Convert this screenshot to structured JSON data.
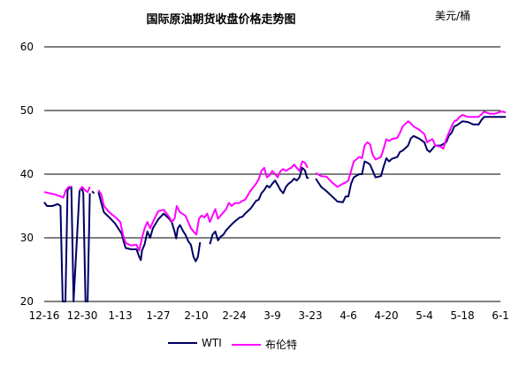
{
  "chart_data": {
    "type": "line",
    "title": "国际原油期货收盘价格走势图",
    "unit_label": "美元/桶",
    "xlabel": "",
    "ylabel": "",
    "ylim": [
      20,
      60
    ],
    "y_ticks": [
      "20",
      "30",
      "40",
      "50",
      "60"
    ],
    "x_ticks": [
      "12-16",
      "12-30",
      "1-13",
      "1-27",
      "2-10",
      "2-24",
      "3-9",
      "3-23",
      "4-6",
      "4-20",
      "5-4",
      "5-18",
      "6-1"
    ],
    "grid": "horizontal",
    "legend_position": "bottom",
    "series": [
      {
        "name": "WTI",
        "color": "#000066",
        "points": [
          [
            0,
            35.6
          ],
          [
            0.5,
            35.0
          ],
          [
            1.5,
            35.0
          ],
          [
            2.5,
            35.3
          ],
          [
            3,
            35.0
          ],
          [
            3.4,
            20.0
          ],
          [
            3.9,
            20.0
          ],
          [
            4.3,
            37.5
          ],
          [
            4.7,
            37.9
          ],
          [
            5.0,
            38.0
          ],
          [
            5.4,
            20.0
          ],
          [
            6.5,
            37.3
          ],
          [
            6.9,
            37.9
          ],
          [
            7.2,
            37.0
          ],
          [
            7.6,
            20.0
          ],
          [
            8.0,
            20.0
          ],
          [
            8.4,
            37.0
          ],
          null,
          [
            8.8,
            37.3
          ],
          [
            9.2,
            37.0
          ],
          null,
          [
            10,
            37.2
          ],
          [
            10.5,
            35.5
          ],
          [
            11,
            34.0
          ],
          [
            12,
            33.2
          ],
          [
            13,
            32.3
          ],
          [
            14,
            31.0
          ],
          [
            14.3,
            30.6
          ],
          [
            14.6,
            29.5
          ],
          [
            15,
            28.4
          ],
          [
            16,
            28.2
          ],
          [
            17,
            28.2
          ],
          [
            17.5,
            27.0
          ],
          [
            17.8,
            26.5
          ],
          [
            18,
            28.0
          ],
          [
            18.5,
            29.0
          ],
          [
            19,
            31.0
          ],
          [
            19.5,
            30.0
          ],
          [
            20,
            31.5
          ],
          [
            21,
            32.9
          ],
          [
            22,
            33.8
          ],
          [
            23,
            33.0
          ],
          [
            23.5,
            32.4
          ],
          [
            24,
            31.0
          ],
          [
            24.3,
            29.9
          ],
          [
            24.6,
            31.5
          ],
          [
            25,
            32.0
          ],
          [
            25.6,
            31.0
          ],
          [
            26,
            30.5
          ],
          [
            26.5,
            29.5
          ],
          [
            27,
            28.9
          ],
          [
            27.5,
            27.0
          ],
          [
            27.9,
            26.3
          ],
          [
            28.3,
            27.0
          ],
          [
            28.7,
            29.3
          ],
          null,
          [
            30.5,
            29.0
          ],
          [
            31,
            30.5
          ],
          [
            31.5,
            31.0
          ],
          [
            32,
            29.6
          ],
          [
            32.5,
            30.2
          ],
          [
            33,
            30.5
          ],
          [
            33.5,
            31.2
          ],
          [
            34.5,
            32.1
          ],
          [
            35,
            32.5
          ],
          [
            36,
            33.2
          ],
          [
            36.5,
            33.3
          ],
          [
            37,
            33.8
          ],
          [
            38,
            34.6
          ],
          [
            39,
            35.8
          ],
          [
            39.5,
            36.0
          ],
          [
            40,
            37.0
          ],
          [
            40.5,
            37.5
          ],
          [
            41,
            38.2
          ],
          [
            41.5,
            37.9
          ],
          [
            42,
            38.5
          ],
          [
            42.5,
            39.0
          ],
          [
            43,
            38.3
          ],
          [
            43.5,
            37.5
          ],
          [
            44,
            37.0
          ],
          [
            44.5,
            38.0
          ],
          [
            45,
            38.5
          ],
          [
            45.5,
            38.8
          ],
          [
            46,
            39.3
          ],
          [
            46.5,
            39.0
          ],
          [
            47,
            39.5
          ],
          [
            47.5,
            41.0
          ],
          [
            48,
            40.6
          ],
          [
            48.4,
            39.4
          ],
          [
            48.7,
            39.4
          ],
          null,
          [
            50,
            39.3
          ],
          [
            51,
            38.0
          ],
          [
            52,
            37.3
          ],
          [
            53,
            36.5
          ],
          [
            54,
            35.7
          ],
          [
            55,
            35.6
          ],
          [
            55.5,
            36.5
          ],
          [
            56,
            36.5
          ],
          [
            56.5,
            38.5
          ],
          [
            57,
            39.5
          ],
          [
            58,
            40.0
          ],
          [
            58.5,
            40.0
          ],
          [
            59,
            42.0
          ],
          [
            59.5,
            41.8
          ],
          [
            60,
            41.5
          ],
          [
            60.5,
            40.5
          ],
          [
            61,
            39.5
          ],
          [
            62,
            39.7
          ],
          [
            62.5,
            41.2
          ],
          [
            63,
            42.5
          ],
          [
            63.5,
            42.0
          ],
          [
            64,
            42.4
          ],
          [
            65,
            42.7
          ],
          [
            65.5,
            43.5
          ],
          [
            66,
            43.7
          ],
          [
            67,
            44.5
          ],
          [
            67.5,
            45.6
          ],
          [
            68,
            46.0
          ],
          [
            69,
            45.6
          ],
          [
            70,
            45.0
          ],
          [
            70.5,
            43.8
          ],
          [
            71,
            43.5
          ],
          [
            71.5,
            44.0
          ],
          [
            72,
            44.5
          ],
          [
            73,
            44.5
          ],
          [
            74,
            45.0
          ],
          [
            74.5,
            46.0
          ],
          [
            75,
            46.5
          ],
          [
            75.5,
            47.5
          ],
          [
            76,
            47.7
          ],
          [
            76.5,
            48.0
          ],
          [
            77,
            48.3
          ],
          [
            78,
            48.2
          ],
          [
            79,
            47.8
          ],
          [
            80,
            47.8
          ],
          [
            80.5,
            48.5
          ],
          [
            81,
            49.0
          ],
          [
            82,
            49.0
          ],
          [
            83,
            49.0
          ],
          [
            84,
            49.0
          ],
          [
            84.5,
            49.0
          ],
          [
            85,
            49.0
          ]
        ]
      },
      {
        "name": "布伦特",
        "color": "#ff00ff",
        "points": [
          [
            0,
            37.2
          ],
          [
            1,
            37.0
          ],
          [
            2,
            36.8
          ],
          [
            3,
            36.5
          ],
          [
            3.5,
            36.3
          ],
          [
            4,
            37.5
          ],
          [
            4.5,
            38.0
          ],
          [
            5,
            38.0
          ],
          null,
          [
            6.5,
            37.5
          ],
          [
            7,
            38.0
          ],
          [
            7.5,
            37.5
          ],
          [
            8,
            37.2
          ],
          [
            8.4,
            38.0
          ],
          null,
          [
            10,
            37.5
          ],
          [
            10.5,
            36.8
          ],
          [
            11,
            35.0
          ],
          [
            12,
            34.0
          ],
          [
            13,
            33.3
          ],
          [
            14,
            32.5
          ],
          [
            14.5,
            30.5
          ],
          [
            15,
            29.2
          ],
          [
            16,
            28.8
          ],
          [
            17,
            28.9
          ],
          [
            17.5,
            28.0
          ],
          [
            18,
            30.0
          ],
          [
            18.5,
            31.5
          ],
          [
            19,
            32.5
          ],
          [
            19.5,
            31.5
          ],
          [
            20,
            32.5
          ],
          [
            21,
            34.2
          ],
          [
            22,
            34.4
          ],
          [
            23,
            33.3
          ],
          [
            23.5,
            32.5
          ],
          [
            24,
            33.0
          ],
          [
            24.4,
            35.0
          ],
          [
            25,
            34.0
          ],
          [
            26,
            33.5
          ],
          [
            27,
            31.5
          ],
          [
            27.5,
            31.0
          ],
          [
            28,
            30.5
          ],
          [
            28.5,
            33.0
          ],
          [
            29,
            33.5
          ],
          [
            29.5,
            33.2
          ],
          [
            30,
            33.8
          ],
          [
            30.5,
            32.5
          ],
          [
            31,
            33.5
          ],
          [
            31.5,
            34.5
          ],
          [
            32,
            33.0
          ],
          [
            32.5,
            33.5
          ],
          [
            33,
            34.0
          ],
          [
            33.5,
            34.5
          ],
          [
            34,
            35.5
          ],
          [
            34.5,
            35.0
          ],
          [
            35,
            35.4
          ],
          [
            36,
            35.5
          ],
          [
            36.5,
            35.8
          ],
          [
            37,
            36.0
          ],
          [
            38,
            37.4
          ],
          [
            39,
            38.5
          ],
          [
            39.5,
            39.2
          ],
          [
            40,
            40.5
          ],
          [
            40.5,
            41.0
          ],
          [
            41,
            39.5
          ],
          [
            41.5,
            39.8
          ],
          [
            42,
            40.5
          ],
          [
            42.5,
            40.0
          ],
          [
            43,
            39.5
          ],
          [
            43.5,
            40.5
          ],
          [
            44,
            40.8
          ],
          [
            44.5,
            40.5
          ],
          [
            45,
            40.8
          ],
          [
            45.5,
            41.0
          ],
          [
            46,
            41.5
          ],
          [
            46.5,
            41.0
          ],
          [
            47,
            40.5
          ],
          [
            47.5,
            42.0
          ],
          [
            48,
            41.8
          ],
          [
            48.5,
            41.0
          ],
          null,
          [
            50,
            40.2
          ],
          [
            51,
            39.7
          ],
          [
            52,
            39.6
          ],
          [
            53,
            38.7
          ],
          [
            54,
            38.0
          ],
          [
            55,
            38.5
          ],
          [
            55.5,
            38.7
          ],
          [
            56,
            39.0
          ],
          [
            56.5,
            40.5
          ],
          [
            57,
            42.0
          ],
          [
            58,
            42.7
          ],
          [
            58.5,
            42.5
          ],
          [
            59,
            44.5
          ],
          [
            59.5,
            45.0
          ],
          [
            60,
            44.7
          ],
          [
            60.5,
            43.0
          ],
          [
            61,
            42.3
          ],
          [
            62,
            42.7
          ],
          [
            62.5,
            44.0
          ],
          [
            63,
            45.5
          ],
          [
            63.5,
            45.2
          ],
          [
            64,
            45.5
          ],
          [
            65,
            45.7
          ],
          [
            65.5,
            46.5
          ],
          [
            66,
            47.5
          ],
          [
            67,
            48.3
          ],
          [
            67.5,
            48.0
          ],
          [
            68,
            47.5
          ],
          [
            69,
            47.0
          ],
          [
            70,
            46.3
          ],
          [
            70.5,
            45.0
          ],
          [
            71,
            45.3
          ],
          [
            71.5,
            45.5
          ],
          [
            72,
            44.5
          ],
          [
            73,
            44.3
          ],
          [
            73.5,
            44.0
          ],
          [
            74,
            45.5
          ],
          [
            74.5,
            46.5
          ],
          [
            75,
            47.5
          ],
          [
            75.5,
            48.3
          ],
          [
            76,
            48.5
          ],
          [
            76.5,
            49.0
          ],
          [
            77,
            49.3
          ],
          [
            78,
            49.0
          ],
          [
            79,
            49.0
          ],
          [
            80,
            49.0
          ],
          [
            80.5,
            49.4
          ],
          [
            81,
            49.8
          ],
          [
            82,
            49.5
          ],
          [
            83,
            49.5
          ],
          [
            84,
            49.8
          ],
          [
            84.5,
            49.8
          ],
          [
            85,
            49.7
          ]
        ]
      }
    ]
  }
}
